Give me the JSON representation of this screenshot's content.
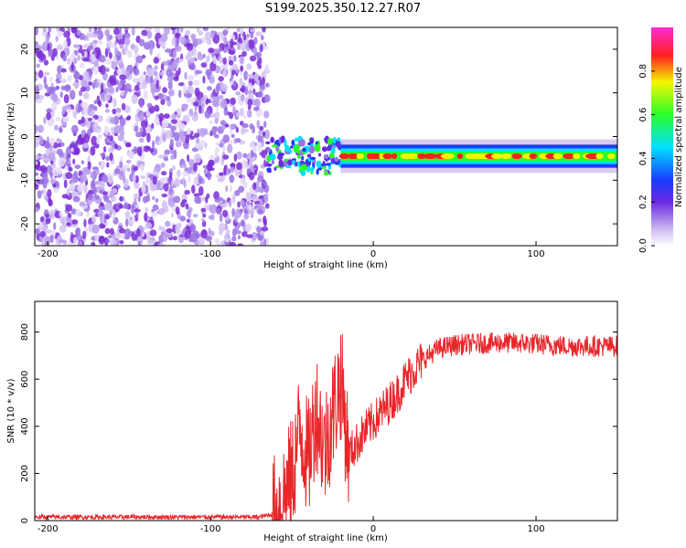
{
  "title": "S199.2025.350.12.27.R07",
  "colors": {
    "signal": "#e8262a",
    "noise": "#7b2fd6",
    "background": "#ffffff",
    "axis": "#000000"
  },
  "chart_data": [
    {
      "type": "heatmap",
      "name": "spectrogram",
      "xlabel": "Height of straight line (km)",
      "ylabel": "Frequency (Hz)",
      "xlim": [
        -208,
        150
      ],
      "ylim": [
        -25,
        25
      ],
      "xticks": [
        -200,
        -100,
        0,
        100
      ],
      "yticks": [
        -20,
        -10,
        0,
        10,
        20
      ],
      "noise_region_x": [
        -208,
        -65
      ],
      "transition_region_x": [
        -65,
        -20
      ],
      "signal_track": {
        "x": [
          -20,
          150
        ],
        "center_frequency": -4.5,
        "band_half_width": 1.2,
        "peak_amplitude": 1.0
      },
      "colorbar": {
        "label": "Normalized spectral amplitude",
        "range": [
          0.0,
          1.0
        ],
        "ticks": [
          0.0,
          0.2,
          0.4,
          0.6,
          0.8
        ],
        "tick_labels": [
          "0.0",
          "0.2",
          "0.4",
          "0.6",
          "0.8"
        ],
        "colormap": "rainbow"
      }
    },
    {
      "type": "line",
      "name": "snr",
      "xlabel": "Height of straight line (km)",
      "ylabel": "SNR (10 * v/v)",
      "xlim": [
        -208,
        150
      ],
      "ylim": [
        0,
        930
      ],
      "xticks": [
        -200,
        -100,
        0,
        100
      ],
      "yticks": [
        0,
        200,
        400,
        600,
        800
      ],
      "series": [
        {
          "name": "SNR",
          "color": "#e8262a",
          "x": [
            -208,
            -150,
            -100,
            -70,
            -60,
            -50,
            -45,
            -40,
            -35,
            -30,
            -25,
            -20,
            -15,
            -10,
            -5,
            0,
            5,
            10,
            15,
            20,
            25,
            30,
            40,
            50,
            60,
            80,
            100,
            120,
            150
          ],
          "y": [
            15,
            15,
            15,
            15,
            30,
            180,
            400,
            250,
            480,
            300,
            450,
            600,
            280,
            330,
            380,
            420,
            460,
            500,
            540,
            600,
            640,
            680,
            730,
            745,
            750,
            755,
            750,
            740,
            740
          ]
        }
      ]
    }
  ]
}
